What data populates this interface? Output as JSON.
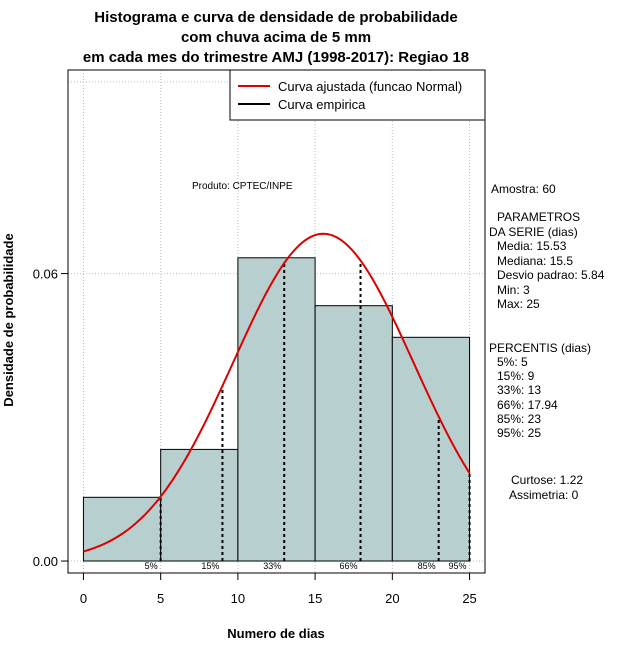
{
  "chart_data": {
    "type": "histogram",
    "title_lines": [
      "Histograma e curva de densidade de probabilidade",
      "com chuva acima de 5 mm",
      "em cada mes do trimestre AMJ (1998-2017): Regiao 18"
    ],
    "xlabel": "Numero de dias",
    "ylabel": "Densidade de probabilidade",
    "xlim": [
      -1,
      26
    ],
    "ylim": [
      -0.0025,
      0.1025
    ],
    "x_ticks": [
      0,
      5,
      10,
      15,
      20,
      25
    ],
    "y_ticks": [
      0.0,
      0.06
    ],
    "y_tick_labels": [
      "0.00",
      "0.06"
    ],
    "grid_x": [
      0,
      5,
      10,
      15,
      20,
      25
    ],
    "grid_y": [
      0.0,
      0.06,
      0.1
    ],
    "bins": [
      {
        "start": 0,
        "end": 5,
        "density": 0.0133
      },
      {
        "start": 5,
        "end": 10,
        "density": 0.0233
      },
      {
        "start": 10,
        "end": 15,
        "density": 0.0633
      },
      {
        "start": 15,
        "end": 20,
        "density": 0.0533
      },
      {
        "start": 20,
        "end": 25,
        "density": 0.0467
      }
    ],
    "bar_color": "#b7cfcf",
    "normal_fit": {
      "mean": 15.53,
      "sd": 5.84,
      "color": "#dd0000"
    },
    "percentiles": [
      {
        "label": "5%",
        "value": 5
      },
      {
        "label": "15%",
        "value": 9
      },
      {
        "label": "33%",
        "value": 13
      },
      {
        "label": "66%",
        "value": 17.94
      },
      {
        "label": "85%",
        "value": 23
      },
      {
        "label": "95%",
        "value": 25
      }
    ],
    "legend": [
      {
        "label": "Curva ajustada (funcao Normal)",
        "color": "#dd0000"
      },
      {
        "label": "Curva empirica",
        "color": "#000000"
      }
    ],
    "legend_position": "top-right",
    "annotation": "Produto: CPTEC/INPE"
  },
  "stats": {
    "amostra": "Amostra: 60",
    "parametros_title_1": "PARAMETROS",
    "parametros_title_2": "DA SERIE (dias)",
    "media": "Media: 15.53",
    "mediana": "Mediana: 15.5",
    "desvio": "Desvio padrao: 5.84",
    "min": "Min: 3",
    "max": "Max: 25",
    "percentis_title": "PERCENTIS (dias)",
    "p5": "5%: 5",
    "p15": "15%: 9",
    "p33": "33%: 13",
    "p66": "66%: 17.94",
    "p85": "85%: 23",
    "p95": "95%: 25",
    "curtose": "Curtose: 1.22",
    "assimetria": "Assimetria: 0"
  }
}
